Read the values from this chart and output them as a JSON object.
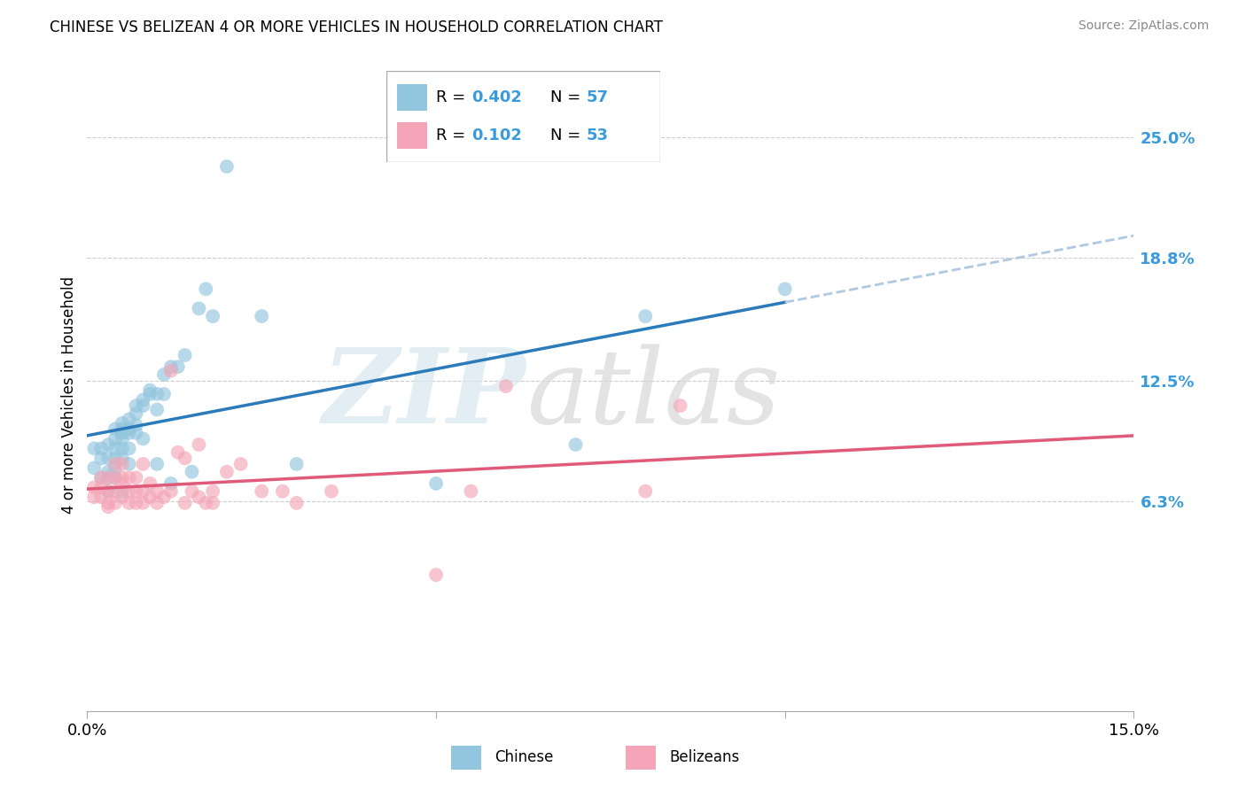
{
  "title": "CHINESE VS BELIZEAN 4 OR MORE VEHICLES IN HOUSEHOLD CORRELATION CHART",
  "source": "Source: ZipAtlas.com",
  "ylabel": "4 or more Vehicles in Household",
  "xlim": [
    0.0,
    0.15
  ],
  "ylim": [
    -0.045,
    0.28
  ],
  "xtick_vals": [
    0.0,
    0.05,
    0.1,
    0.15
  ],
  "xtick_labels": [
    "0.0%",
    "",
    "",
    "15.0%"
  ],
  "ytick_vals": [
    0.063,
    0.125,
    0.188,
    0.25
  ],
  "ytick_labels": [
    "6.3%",
    "12.5%",
    "18.8%",
    "25.0%"
  ],
  "chinese_R": 0.402,
  "chinese_N": 57,
  "belizean_R": 0.102,
  "belizean_N": 53,
  "chinese_scatter_color": "#92c5de",
  "belizean_scatter_color": "#f4a6b8",
  "chinese_line_color": "#2b7bba",
  "belizean_line_color": "#e05a7a",
  "dashed_color": "#b0c8e0",
  "r_n_color": "#3a9bdc",
  "background_color": "#ffffff",
  "grid_color": "#cccccc",
  "chinese_x": [
    0.001,
    0.001,
    0.002,
    0.002,
    0.002,
    0.003,
    0.003,
    0.003,
    0.003,
    0.003,
    0.004,
    0.004,
    0.004,
    0.004,
    0.004,
    0.004,
    0.005,
    0.005,
    0.005,
    0.005,
    0.005,
    0.005,
    0.005,
    0.006,
    0.006,
    0.006,
    0.006,
    0.006,
    0.007,
    0.007,
    0.007,
    0.007,
    0.008,
    0.008,
    0.008,
    0.009,
    0.009,
    0.01,
    0.01,
    0.01,
    0.011,
    0.011,
    0.012,
    0.012,
    0.013,
    0.014,
    0.015,
    0.016,
    0.017,
    0.018,
    0.02,
    0.025,
    0.03,
    0.05,
    0.07,
    0.08,
    0.1
  ],
  "chinese_y": [
    0.08,
    0.09,
    0.075,
    0.085,
    0.09,
    0.078,
    0.085,
    0.092,
    0.068,
    0.075,
    0.08,
    0.095,
    0.1,
    0.09,
    0.085,
    0.075,
    0.098,
    0.103,
    0.1,
    0.095,
    0.09,
    0.085,
    0.068,
    0.105,
    0.1,
    0.098,
    0.09,
    0.082,
    0.112,
    0.108,
    0.102,
    0.098,
    0.115,
    0.112,
    0.095,
    0.12,
    0.118,
    0.118,
    0.11,
    0.082,
    0.128,
    0.118,
    0.132,
    0.072,
    0.132,
    0.138,
    0.078,
    0.162,
    0.172,
    0.158,
    0.235,
    0.158,
    0.082,
    0.072,
    0.092,
    0.158,
    0.172
  ],
  "belizean_x": [
    0.001,
    0.001,
    0.002,
    0.002,
    0.002,
    0.003,
    0.003,
    0.003,
    0.003,
    0.004,
    0.004,
    0.004,
    0.004,
    0.005,
    0.005,
    0.005,
    0.005,
    0.006,
    0.006,
    0.006,
    0.007,
    0.007,
    0.007,
    0.008,
    0.008,
    0.008,
    0.009,
    0.009,
    0.01,
    0.01,
    0.011,
    0.012,
    0.013,
    0.014,
    0.014,
    0.015,
    0.016,
    0.016,
    0.017,
    0.018,
    0.02,
    0.022,
    0.025,
    0.03,
    0.035,
    0.05,
    0.055,
    0.06,
    0.08,
    0.085,
    0.012,
    0.018,
    0.028
  ],
  "belizean_y": [
    0.065,
    0.07,
    0.065,
    0.07,
    0.075,
    0.075,
    0.068,
    0.062,
    0.06,
    0.068,
    0.075,
    0.062,
    0.082,
    0.072,
    0.065,
    0.075,
    0.082,
    0.068,
    0.062,
    0.075,
    0.068,
    0.062,
    0.075,
    0.082,
    0.068,
    0.062,
    0.065,
    0.072,
    0.068,
    0.062,
    0.065,
    0.068,
    0.088,
    0.062,
    0.085,
    0.068,
    0.065,
    0.092,
    0.062,
    0.062,
    0.078,
    0.082,
    0.068,
    0.062,
    0.068,
    0.025,
    0.068,
    0.122,
    0.068,
    0.112,
    0.13,
    0.068,
    0.068
  ]
}
